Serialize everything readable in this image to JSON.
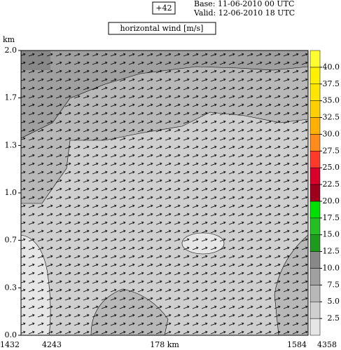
{
  "chart_data": {
    "type": "contour",
    "run_label": "+42",
    "base": "Base: 11-06-2010  00 UTC",
    "valid": "Valid: 12-06-2010  18 UTC",
    "title": "horizontal wind [m/s]",
    "y_label": "km",
    "ylim": [
      0,
      2
    ],
    "yticks": [
      {
        "value": 2,
        "label": "2.0"
      },
      {
        "value": 1.667,
        "label": "1.7"
      },
      {
        "value": 1.333,
        "label": "1.3"
      },
      {
        "value": 1,
        "label": "1.0"
      },
      {
        "value": 0.667,
        "label": "0.7"
      },
      {
        "value": 0.333,
        "label": "0.3"
      },
      {
        "value": 0,
        "label": "0.0"
      }
    ],
    "x_start_labels": [
      "1432",
      "4243"
    ],
    "x_center_label": "178 km",
    "x_end_labels": [
      "1584",
      "4358"
    ],
    "clim": [
      0,
      42.5
    ],
    "cticks": [
      2.5,
      {
        "value": 5,
        "label": "5.0"
      },
      7.5,
      {
        "value": 10,
        "label": "10.0"
      },
      12.5,
      {
        "value": 15,
        "label": "15.0"
      },
      17.5,
      {
        "value": 20,
        "label": "20.0"
      },
      22.5,
      {
        "value": 25,
        "label": "25.0"
      },
      27.5,
      {
        "value": 30,
        "label": "30.0"
      },
      32.5,
      {
        "value": 35,
        "label": "35.0"
      },
      37.5,
      {
        "value": 40,
        "label": "40.0"
      }
    ],
    "colors": [
      "#e6e6e6",
      "#cfcfcf",
      "#b8b8b8",
      "#a0a0a0",
      "#888888",
      "#1e9b1e",
      "#22c022",
      "#00e000",
      "#a00020",
      "#d8002a",
      "#ff3a2a",
      "#ff8c1a",
      "#ffb000",
      "#ffd000",
      "#ffe500",
      "#fff000",
      "#ffff30"
    ]
  }
}
